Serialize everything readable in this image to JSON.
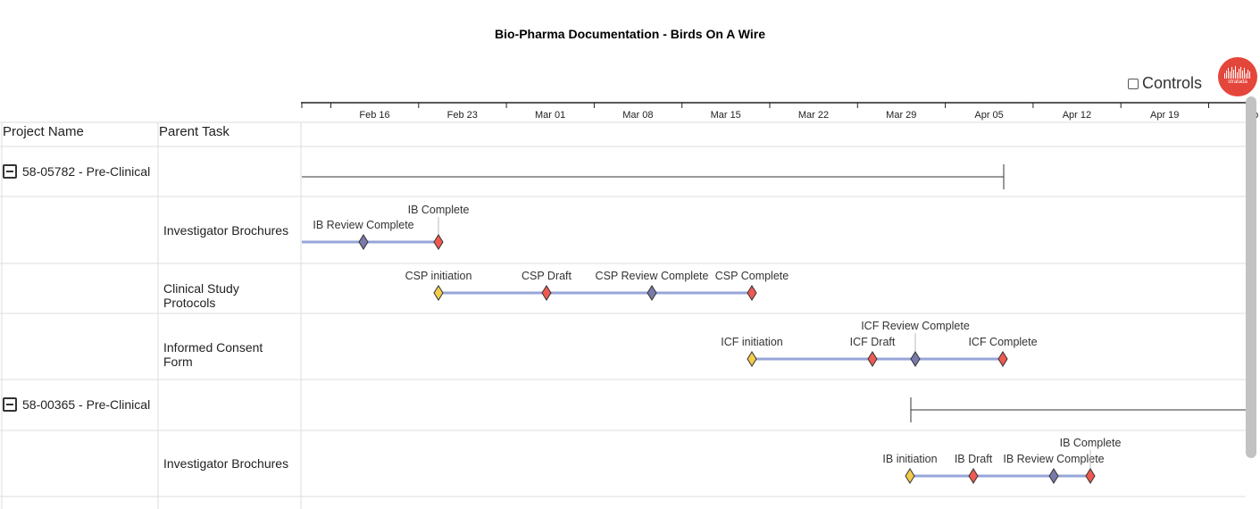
{
  "title": "Bio-Pharma Documentation - Birds On A Wire",
  "controls_label": "Controls",
  "logo_text": "stratada",
  "columns": {
    "project": "Project Name",
    "parent": "Parent Task"
  },
  "timeline": {
    "ticks": [
      "Feb 16",
      "Feb 23",
      "Mar 01",
      "Mar 08",
      "Mar 15",
      "Mar 22",
      "Mar 29",
      "Apr 05",
      "Apr 12",
      "Apr 19",
      "Ap"
    ]
  },
  "projects": [
    {
      "name": "58-05782 - Pre-Clinical"
    },
    {
      "name": "58-00365 - Pre-Clinical"
    }
  ],
  "tasks": [
    {
      "label": "Investigator Brochures"
    },
    {
      "label": "Clinical Study Protocols"
    },
    {
      "label": "Informed Consent Form"
    },
    {
      "label": "Investigator Brochures"
    }
  ],
  "milestones": [
    {
      "label": "IB Review Complete",
      "type": "review"
    },
    {
      "label": "IB Complete",
      "type": "complete"
    },
    {
      "label": "CSP initiation",
      "type": "initiation"
    },
    {
      "label": "CSP Draft",
      "type": "draft"
    },
    {
      "label": "CSP Review Complete",
      "type": "review"
    },
    {
      "label": "CSP Complete",
      "type": "complete"
    },
    {
      "label": "ICF initiation",
      "type": "initiation"
    },
    {
      "label": "ICF Draft",
      "type": "draft"
    },
    {
      "label": "ICF Review Complete",
      "type": "review"
    },
    {
      "label": "ICF Complete",
      "type": "complete"
    },
    {
      "label": "IB initiation",
      "type": "initiation"
    },
    {
      "label": "IB Draft",
      "type": "draft"
    },
    {
      "label": "IB Review Complete",
      "type": "review"
    },
    {
      "label": "IB Complete",
      "type": "complete"
    }
  ],
  "colors": {
    "initiation": "#f2cd4b",
    "draft": "#ee5a52",
    "review": "#7a7aaa",
    "complete": "#ee5a52",
    "bar": "#97a6d8",
    "logo": "#e5463b"
  }
}
